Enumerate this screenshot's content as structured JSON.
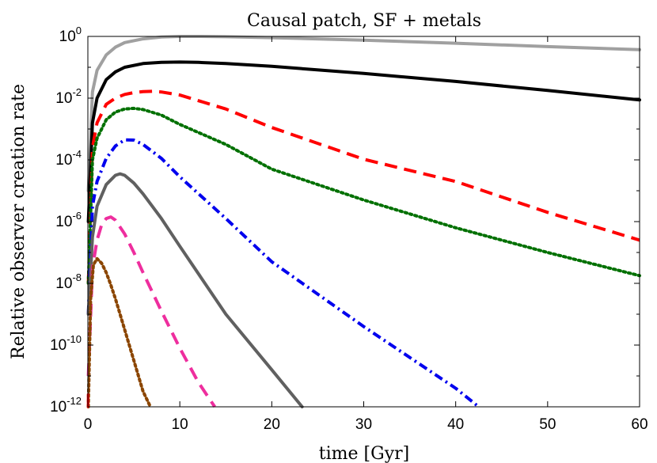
{
  "chart_data": {
    "type": "line",
    "title": "Causal patch, SF + metals",
    "xlabel": "time [Gyr]",
    "ylabel": "Relative observer creation rate",
    "xscale": "linear",
    "yscale": "log",
    "xlim": [
      0,
      60
    ],
    "ylim_exponent": [
      -12,
      0
    ],
    "xticks": [
      0,
      10,
      20,
      30,
      40,
      50,
      60
    ],
    "yticks": [
      {
        "base": "10",
        "exp": "0"
      },
      {
        "base": "10",
        "exp": "-2"
      },
      {
        "base": "10",
        "exp": "-4"
      },
      {
        "base": "10",
        "exp": "-6"
      },
      {
        "base": "10",
        "exp": "-8"
      },
      {
        "base": "10",
        "exp": "-10"
      },
      {
        "base": "10",
        "exp": "-12"
      }
    ],
    "grid": false,
    "legend": "none",
    "series": [
      {
        "name": "light-gray-solid",
        "color": "#a0a0a0",
        "dash": "solid",
        "x": [
          0.05,
          0.5,
          1,
          2,
          3,
          4,
          6,
          8,
          10,
          12,
          15,
          20,
          30,
          40,
          50,
          60
        ],
        "log10y": [
          -5,
          -1.8,
          -1.1,
          -0.6,
          -0.35,
          -0.2,
          -0.08,
          -0.02,
          0,
          0,
          -0.01,
          -0.04,
          -0.12,
          -0.22,
          -0.33,
          -0.43
        ]
      },
      {
        "name": "black-solid",
        "color": "#000000",
        "dash": "solid",
        "x": [
          0.05,
          0.5,
          1,
          2,
          3,
          4,
          6,
          8,
          10,
          12,
          15,
          20,
          30,
          40,
          50,
          60
        ],
        "log10y": [
          -6,
          -2.8,
          -2.0,
          -1.4,
          -1.15,
          -1.0,
          -0.88,
          -0.84,
          -0.83,
          -0.84,
          -0.88,
          -0.97,
          -1.2,
          -1.46,
          -1.75,
          -2.06
        ]
      },
      {
        "name": "red-dashed",
        "color": "#ff0000",
        "dash": "long-dash",
        "x": [
          0.05,
          0.5,
          1,
          2,
          3,
          4,
          5,
          6,
          7,
          8,
          10,
          15,
          20,
          30,
          40,
          50,
          60
        ],
        "log10y": [
          -8,
          -3.6,
          -2.8,
          -2.2,
          -2.0,
          -1.88,
          -1.82,
          -1.79,
          -1.78,
          -1.8,
          -1.9,
          -2.35,
          -2.95,
          -3.98,
          -4.7,
          -5.7,
          -6.6
        ]
      },
      {
        "name": "green-dotted",
        "color": "#007000",
        "dash": "dotted",
        "x": [
          0.05,
          0.5,
          1,
          2,
          3,
          4,
          5,
          6,
          8,
          10,
          15,
          20,
          30,
          40,
          50,
          60
        ],
        "log10y": [
          -8,
          -4.0,
          -3.3,
          -2.7,
          -2.45,
          -2.35,
          -2.33,
          -2.37,
          -2.55,
          -2.85,
          -3.5,
          -4.3,
          -5.3,
          -6.2,
          -7.0,
          -7.75
        ]
      },
      {
        "name": "blue-dash-dot",
        "color": "#0000ee",
        "dash": "dash-dot",
        "x": [
          0.05,
          0.5,
          1,
          2,
          3,
          4,
          5,
          6,
          8,
          10,
          15,
          20,
          30,
          40,
          42.5
        ],
        "log10y": [
          -9,
          -5.5,
          -4.7,
          -3.95,
          -3.55,
          -3.35,
          -3.36,
          -3.5,
          -3.95,
          -4.55,
          -5.9,
          -7.3,
          -9.4,
          -11.4,
          -12
        ]
      },
      {
        "name": "dark-gray-solid",
        "color": "#606060",
        "dash": "solid",
        "x": [
          0.05,
          0.5,
          1,
          2,
          3,
          3.5,
          4,
          5,
          6,
          8,
          10,
          15,
          20,
          23.3
        ],
        "log10y": [
          -9,
          -6.5,
          -5.5,
          -4.8,
          -4.5,
          -4.45,
          -4.5,
          -4.75,
          -5.1,
          -5.9,
          -6.8,
          -9.0,
          -10.8,
          -12
        ]
      },
      {
        "name": "magenta-dashed",
        "color": "#ee2e9e",
        "dash": "long-dash",
        "x": [
          0.05,
          0.5,
          1,
          1.5,
          2,
          2.5,
          3,
          4,
          5,
          6,
          8,
          10,
          12,
          13.8
        ],
        "log10y": [
          -11,
          -7.5,
          -6.6,
          -6.1,
          -5.9,
          -5.85,
          -5.95,
          -6.4,
          -7.0,
          -7.65,
          -8.9,
          -10.1,
          -11.2,
          -12
        ]
      },
      {
        "name": "brown-dotted",
        "color": "#8b4500",
        "dash": "dotted",
        "x": [
          0.05,
          0.3,
          0.6,
          1.0,
          1.5,
          2,
          2.5,
          3,
          3.5,
          4,
          5,
          6,
          6.8
        ],
        "log10y": [
          -12,
          -8.5,
          -7.4,
          -7.2,
          -7.35,
          -7.65,
          -8.05,
          -8.5,
          -9.0,
          -9.5,
          -10.5,
          -11.5,
          -12
        ]
      },
      {
        "name": "red-spike",
        "color": "#ff0000",
        "dash": "solid",
        "x": [
          0.02,
          0.02
        ],
        "log10y": [
          -12,
          -11.6
        ]
      }
    ]
  }
}
